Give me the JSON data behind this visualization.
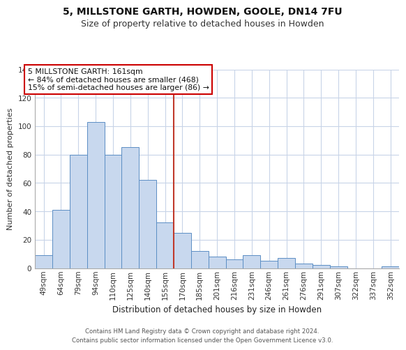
{
  "title": "5, MILLSTONE GARTH, HOWDEN, GOOLE, DN14 7FU",
  "subtitle": "Size of property relative to detached houses in Howden",
  "xlabel": "Distribution of detached houses by size in Howden",
  "ylabel": "Number of detached properties",
  "bar_labels": [
    "49sqm",
    "64sqm",
    "79sqm",
    "94sqm",
    "110sqm",
    "125sqm",
    "140sqm",
    "155sqm",
    "170sqm",
    "185sqm",
    "201sqm",
    "216sqm",
    "231sqm",
    "246sqm",
    "261sqm",
    "276sqm",
    "291sqm",
    "307sqm",
    "322sqm",
    "337sqm",
    "352sqm"
  ],
  "bar_values": [
    9,
    41,
    80,
    103,
    80,
    85,
    62,
    32,
    25,
    12,
    8,
    6,
    9,
    5,
    7,
    3,
    2,
    1,
    0,
    0,
    1
  ],
  "bar_color": "#c8d8ee",
  "bar_edge_color": "#5b8ec4",
  "vline_x_index": 7.5,
  "vline_color": "#c0392b",
  "ylim": [
    0,
    140
  ],
  "yticks": [
    0,
    20,
    40,
    60,
    80,
    100,
    120,
    140
  ],
  "annotation_title": "5 MILLSTONE GARTH: 161sqm",
  "annotation_line1": "← 84% of detached houses are smaller (468)",
  "annotation_line2": "15% of semi-detached houses are larger (86) →",
  "annotation_box_color": "#ffffff",
  "annotation_box_edge_color": "#cc0000",
  "footer_line1": "Contains HM Land Registry data © Crown copyright and database right 2024.",
  "footer_line2": "Contains public sector information licensed under the Open Government Licence v3.0.",
  "background_color": "#ffffff",
  "grid_color": "#c8d4e8",
  "title_fontsize": 10,
  "subtitle_fontsize": 9,
  "axis_label_fontsize": 8,
  "tick_fontsize": 7.5
}
